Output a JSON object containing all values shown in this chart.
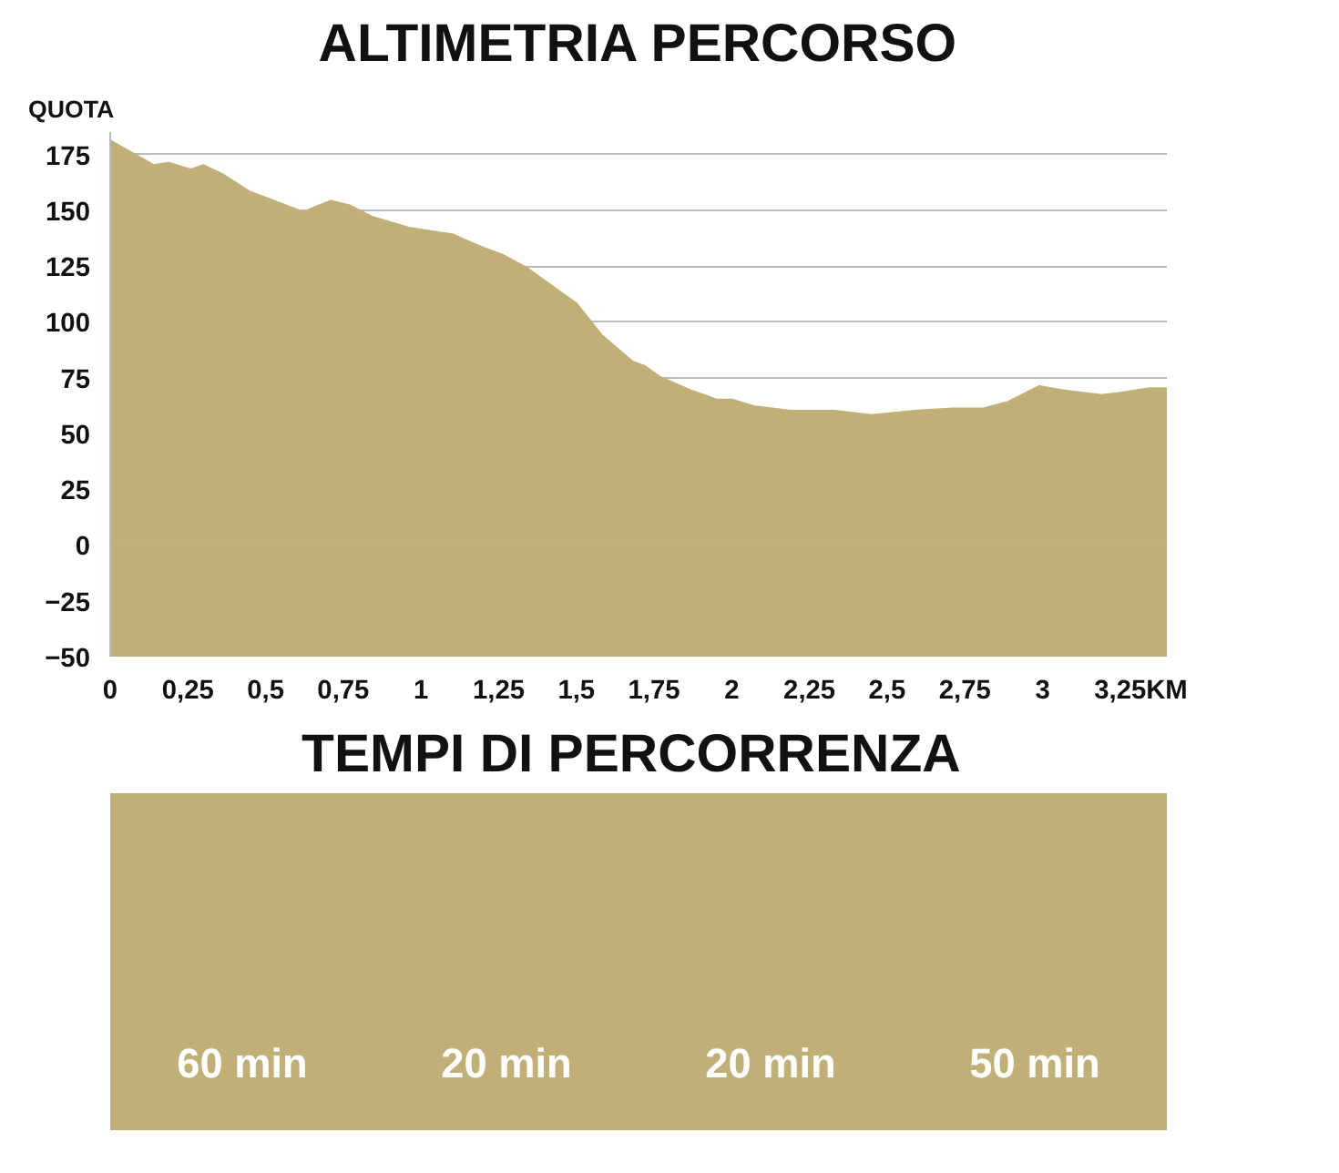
{
  "chart_data": [
    {
      "type": "area",
      "title": "ALTIMETRIA PERCORSO",
      "xlabel": "KM",
      "ylabel": "QUOTA",
      "color": "#c0b077",
      "x": [
        0,
        0.14,
        0.19,
        0.26,
        0.3,
        0.36,
        0.45,
        0.49,
        0.62,
        0.71,
        0.77,
        0.84,
        0.96,
        1.1,
        1.2,
        1.26,
        1.34,
        1.42,
        1.5,
        1.58,
        1.68,
        1.72,
        1.77,
        1.87,
        1.95,
        2.0,
        2.07,
        2.19,
        2.33,
        2.45,
        2.59,
        2.71,
        2.81,
        2.89,
        2.99,
        3.07,
        3.19,
        3.25,
        3.34,
        3.4
      ],
      "values": [
        181,
        170,
        171,
        168,
        170,
        166,
        158,
        156,
        149,
        154,
        152,
        147,
        142,
        139,
        133,
        130,
        124,
        116,
        108,
        94,
        82,
        80,
        75,
        69,
        65,
        65,
        62,
        60,
        60,
        58,
        60,
        61,
        61,
        64,
        71,
        69,
        67,
        68,
        70,
        70
      ],
      "bands": [
        {
          "axis": "y",
          "from": -50,
          "to": 0,
          "color": "#c0b077"
        }
      ],
      "xlim": [
        0,
        3.4
      ],
      "ylim": [
        -50,
        185
      ],
      "xticks": [
        0,
        {
          "value": 0.25,
          "label": "0,25"
        },
        {
          "value": 0.5,
          "label": "0,5"
        },
        {
          "value": 0.75,
          "label": "0,75"
        },
        1,
        {
          "value": 1.25,
          "label": "1,25"
        },
        {
          "value": 1.5,
          "label": "1,5"
        },
        {
          "value": 1.75,
          "label": "1,75"
        },
        2,
        {
          "value": 2.25,
          "label": "2,25"
        },
        {
          "value": 2.5,
          "label": "2,5"
        },
        {
          "value": 2.75,
          "label": "2,75"
        },
        3,
        {
          "value": 3.25,
          "label": "3,25"
        }
      ],
      "yticks": [
        -50,
        -25,
        0,
        25,
        50,
        75,
        100,
        125,
        150,
        175
      ],
      "grid": "y"
    },
    {
      "type": "other",
      "title": "TEMPI  DI PERCORRENZA",
      "color": "#c0b077",
      "annotations": [
        "60 min",
        "20 min",
        "20 min",
        "50 min"
      ]
    }
  ]
}
